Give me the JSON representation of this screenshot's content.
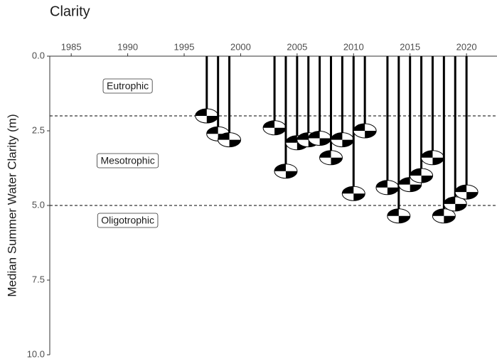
{
  "chart_data": {
    "type": "secchi",
    "title": "Clarity",
    "y_label": "Median Summer Water Clarity (m)",
    "x": [
      1997,
      1998,
      1999,
      2003,
      2004,
      2005,
      2006,
      2007,
      2008,
      2009,
      2010,
      2011,
      2013,
      2014,
      2015,
      2016,
      2017,
      2018,
      2019,
      2020
    ],
    "values": [
      2.0,
      2.6,
      2.8,
      2.4,
      3.85,
      2.9,
      2.8,
      2.75,
      3.4,
      2.8,
      4.6,
      2.5,
      4.4,
      5.35,
      4.3,
      4.0,
      3.4,
      5.35,
      4.95,
      4.55
    ],
    "xlim": [
      1983.1,
      2022.7
    ],
    "xticks": [
      1985,
      1990,
      1995,
      2000,
      2005,
      2010,
      2015,
      2020
    ],
    "ylim": [
      0,
      10
    ],
    "yticks": [
      {
        "value": 0,
        "label": "0.0"
      },
      2.5,
      {
        "value": 5,
        "label": "5.0"
      },
      7.5,
      {
        "value": 10,
        "label": "10.0"
      }
    ],
    "y_reversed": true,
    "thresholds": [
      2,
      5
    ],
    "zones": [
      "Eutrophic",
      "Mesotrophic",
      "Oligotrophic"
    ],
    "color": "#000000"
  }
}
